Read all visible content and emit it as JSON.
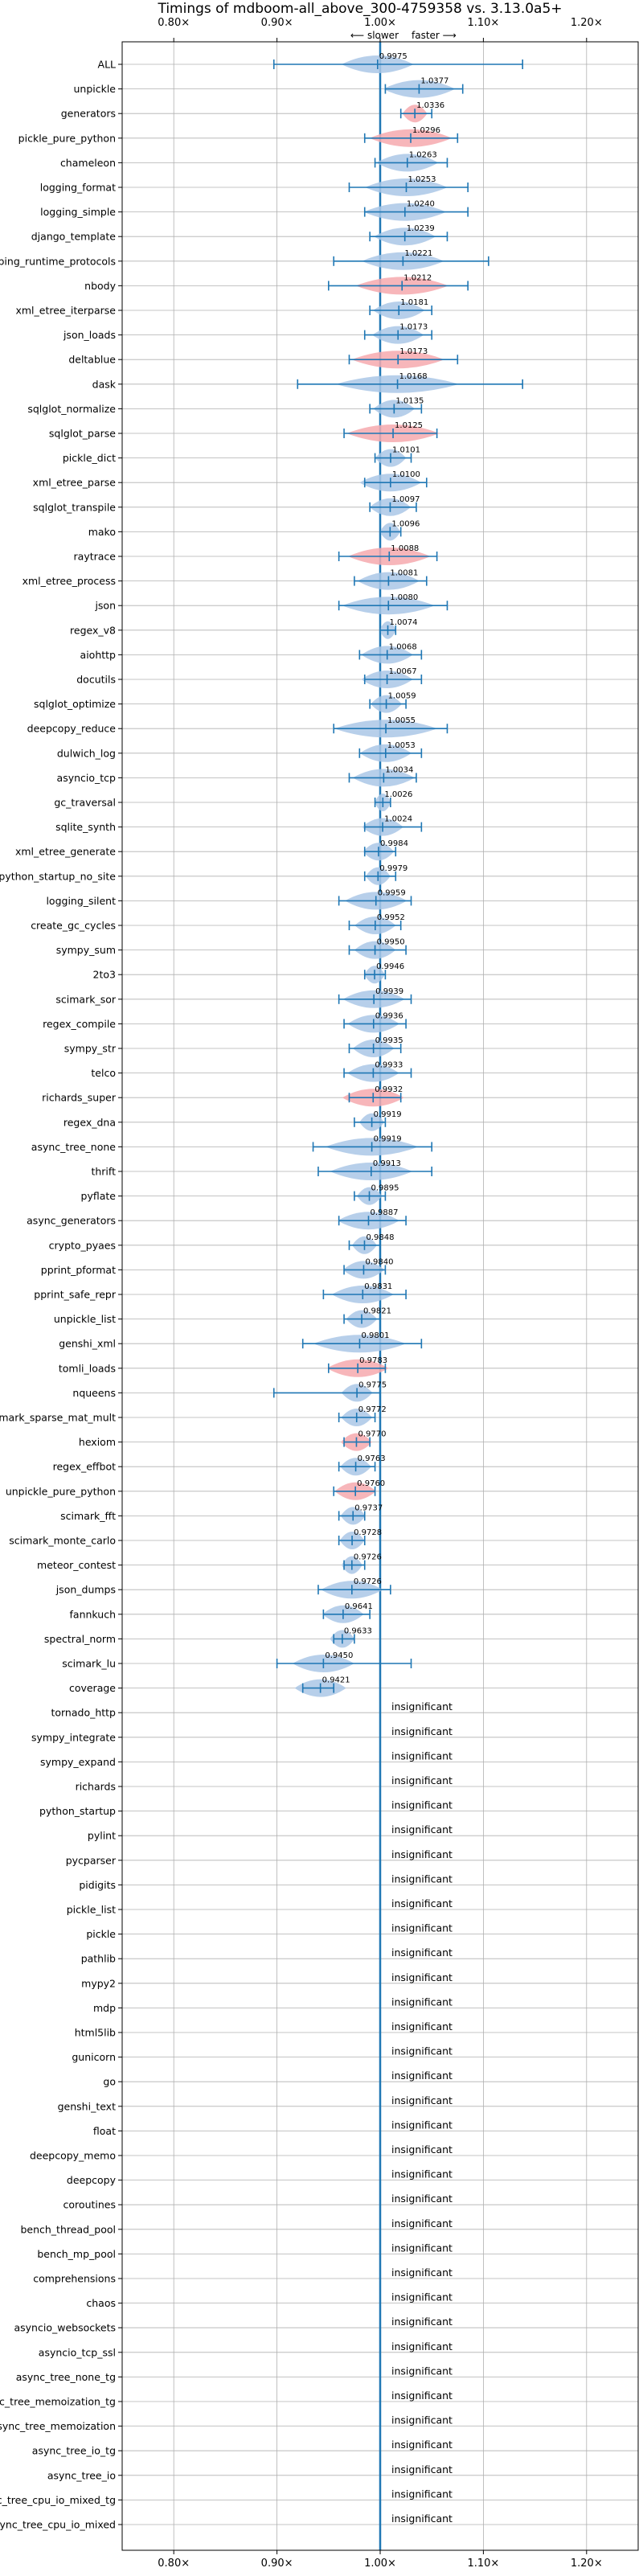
{
  "chart_data": {
    "type": "violin",
    "title": "Timings of mdboom-all_above_300-4759358 vs. 3.13.0a5+",
    "direction_slower": "⟵ slower",
    "direction_faster": "faster ⟶",
    "xlim": [
      0.75,
      1.25
    ],
    "xticks": [
      0.8,
      0.9,
      1.0,
      1.1,
      1.2
    ],
    "xtick_labels": [
      "0.80×",
      "0.90×",
      "1.00×",
      "1.10×",
      "1.20×"
    ],
    "grid": true,
    "colors": {
      "faster": "#aac7e6",
      "slower": "#f6a9ae",
      "line": "#1f77b4",
      "grid": "#b0b0b0"
    },
    "insignificant_label": "insignificant",
    "benchmarks": [
      {
        "name": "ALL",
        "value": 0.9975,
        "label": "0.9975",
        "lo": 0.897,
        "hi": 1.138,
        "width": 0.035,
        "sig": true
      },
      {
        "name": "unpickle",
        "value": 1.0377,
        "label": "1.0377",
        "lo": 1.005,
        "hi": 1.08,
        "width": 0.035,
        "sig": true
      },
      {
        "name": "generators",
        "value": 1.0336,
        "label": "1.0336",
        "lo": 1.02,
        "hi": 1.05,
        "width": 0.012,
        "sig": true
      },
      {
        "name": "pickle_pure_python",
        "value": 1.0296,
        "label": "1.0296",
        "lo": 0.985,
        "hi": 1.075,
        "width": 0.04,
        "sig": true
      },
      {
        "name": "chameleon",
        "value": 1.0263,
        "label": "1.0263",
        "lo": 0.995,
        "hi": 1.065,
        "width": 0.03,
        "sig": true
      },
      {
        "name": "logging_format",
        "value": 1.0253,
        "label": "1.0253",
        "lo": 0.97,
        "hi": 1.085,
        "width": 0.04,
        "sig": true
      },
      {
        "name": "logging_simple",
        "value": 1.024,
        "label": "1.0240",
        "lo": 0.985,
        "hi": 1.085,
        "width": 0.04,
        "sig": true
      },
      {
        "name": "django_template",
        "value": 1.0239,
        "label": "1.0239",
        "lo": 0.99,
        "hi": 1.065,
        "width": 0.03,
        "sig": true
      },
      {
        "name": "typing_runtime_protocols",
        "value": 1.0221,
        "label": "1.0221",
        "lo": 0.955,
        "hi": 1.105,
        "width": 0.04,
        "sig": true
      },
      {
        "name": "nbody",
        "value": 1.0212,
        "label": "1.0212",
        "lo": 0.95,
        "hi": 1.085,
        "width": 0.045,
        "sig": true
      },
      {
        "name": "xml_etree_iterparse",
        "value": 1.0181,
        "label": "1.0181",
        "lo": 0.99,
        "hi": 1.05,
        "width": 0.025,
        "sig": true
      },
      {
        "name": "json_loads",
        "value": 1.0173,
        "label": "1.0173",
        "lo": 0.985,
        "hi": 1.05,
        "width": 0.025,
        "sig": true
      },
      {
        "name": "deltablue",
        "value": 1.0173,
        "label": "1.0173",
        "lo": 0.97,
        "hi": 1.075,
        "width": 0.045,
        "sig": true
      },
      {
        "name": "dask",
        "value": 1.0168,
        "label": "1.0168",
        "lo": 0.92,
        "hi": 1.138,
        "width": 0.06,
        "sig": true
      },
      {
        "name": "sqlglot_normalize",
        "value": 1.0135,
        "label": "1.0135",
        "lo": 0.99,
        "hi": 1.04,
        "width": 0.02,
        "sig": true
      },
      {
        "name": "sqlglot_parse",
        "value": 1.0125,
        "label": "1.0125",
        "lo": 0.965,
        "hi": 1.055,
        "width": 0.045,
        "sig": true
      },
      {
        "name": "pickle_dict",
        "value": 1.0101,
        "label": "1.0101",
        "lo": 0.995,
        "hi": 1.03,
        "width": 0.015,
        "sig": true
      },
      {
        "name": "xml_etree_parse",
        "value": 1.01,
        "label": "1.0100",
        "lo": 0.985,
        "hi": 1.045,
        "width": 0.03,
        "sig": true
      },
      {
        "name": "sqlglot_transpile",
        "value": 1.0097,
        "label": "1.0097",
        "lo": 0.99,
        "hi": 1.035,
        "width": 0.02,
        "sig": true
      },
      {
        "name": "mako",
        "value": 1.0096,
        "label": "1.0096",
        "lo": 1.0,
        "hi": 1.02,
        "width": 0.01,
        "sig": true
      },
      {
        "name": "raytrace",
        "value": 1.0088,
        "label": "1.0088",
        "lo": 0.96,
        "hi": 1.055,
        "width": 0.04,
        "sig": true
      },
      {
        "name": "xml_etree_process",
        "value": 1.0081,
        "label": "1.0081",
        "lo": 0.975,
        "hi": 1.045,
        "width": 0.03,
        "sig": true
      },
      {
        "name": "json",
        "value": 1.008,
        "label": "1.0080",
        "lo": 0.96,
        "hi": 1.065,
        "width": 0.045,
        "sig": true
      },
      {
        "name": "regex_v8",
        "value": 1.0074,
        "label": "1.0074",
        "lo": 1.0,
        "hi": 1.015,
        "width": 0.008,
        "sig": true
      },
      {
        "name": "aiohttp",
        "value": 1.0068,
        "label": "1.0068",
        "lo": 0.98,
        "hi": 1.04,
        "width": 0.025,
        "sig": true
      },
      {
        "name": "docutils",
        "value": 1.0067,
        "label": "1.0067",
        "lo": 0.985,
        "hi": 1.04,
        "width": 0.025,
        "sig": true
      },
      {
        "name": "sqlglot_optimize",
        "value": 1.0059,
        "label": "1.0059",
        "lo": 0.99,
        "hi": 1.025,
        "width": 0.015,
        "sig": true
      },
      {
        "name": "deepcopy_reduce",
        "value": 1.0055,
        "label": "1.0055",
        "lo": 0.955,
        "hi": 1.065,
        "width": 0.05,
        "sig": true
      },
      {
        "name": "dulwich_log",
        "value": 1.0053,
        "label": "1.0053",
        "lo": 0.98,
        "hi": 1.04,
        "width": 0.025,
        "sig": true
      },
      {
        "name": "asyncio_tcp",
        "value": 1.0034,
        "label": "1.0034",
        "lo": 0.97,
        "hi": 1.035,
        "width": 0.03,
        "sig": true
      },
      {
        "name": "gc_traversal",
        "value": 1.0026,
        "label": "1.0026",
        "lo": 0.995,
        "hi": 1.01,
        "width": 0.008,
        "sig": true
      },
      {
        "name": "sqlite_synth",
        "value": 1.0024,
        "label": "1.0024",
        "lo": 0.985,
        "hi": 1.04,
        "width": 0.02,
        "sig": true
      },
      {
        "name": "xml_etree_generate",
        "value": 0.9984,
        "label": "0.9984",
        "lo": 0.985,
        "hi": 1.015,
        "width": 0.015,
        "sig": true
      },
      {
        "name": "python_startup_no_site",
        "value": 0.9979,
        "label": "0.9979",
        "lo": 0.985,
        "hi": 1.015,
        "width": 0.012,
        "sig": true
      },
      {
        "name": "logging_silent",
        "value": 0.9959,
        "label": "0.9959",
        "lo": 0.96,
        "hi": 1.03,
        "width": 0.03,
        "sig": true
      },
      {
        "name": "create_gc_cycles",
        "value": 0.9952,
        "label": "0.9952",
        "lo": 0.97,
        "hi": 1.02,
        "width": 0.02,
        "sig": true
      },
      {
        "name": "sympy_sum",
        "value": 0.995,
        "label": "0.9950",
        "lo": 0.97,
        "hi": 1.025,
        "width": 0.02,
        "sig": true
      },
      {
        "name": "2to3",
        "value": 0.9946,
        "label": "0.9946",
        "lo": 0.985,
        "hi": 1.005,
        "width": 0.01,
        "sig": true
      },
      {
        "name": "scimark_sor",
        "value": 0.9939,
        "label": "0.9939",
        "lo": 0.96,
        "hi": 1.03,
        "width": 0.03,
        "sig": true
      },
      {
        "name": "regex_compile",
        "value": 0.9936,
        "label": "0.9936",
        "lo": 0.965,
        "hi": 1.025,
        "width": 0.025,
        "sig": true
      },
      {
        "name": "sympy_str",
        "value": 0.9935,
        "label": "0.9935",
        "lo": 0.97,
        "hi": 1.02,
        "width": 0.02,
        "sig": true
      },
      {
        "name": "telco",
        "value": 0.9933,
        "label": "0.9933",
        "lo": 0.965,
        "hi": 1.03,
        "width": 0.025,
        "sig": true
      },
      {
        "name": "richards_super",
        "value": 0.9932,
        "label": "0.9932",
        "lo": 0.97,
        "hi": 1.02,
        "width": 0.03,
        "sig": true
      },
      {
        "name": "regex_dna",
        "value": 0.9919,
        "label": "0.9919",
        "lo": 0.975,
        "hi": 1.005,
        "width": 0.012,
        "sig": true
      },
      {
        "name": "async_tree_none",
        "value": 0.9919,
        "label": "0.9919",
        "lo": 0.935,
        "hi": 1.05,
        "width": 0.045,
        "sig": true
      },
      {
        "name": "thrift",
        "value": 0.9913,
        "label": "0.9913",
        "lo": 0.94,
        "hi": 1.05,
        "width": 0.04,
        "sig": true
      },
      {
        "name": "pyflate",
        "value": 0.9895,
        "label": "0.9895",
        "lo": 0.975,
        "hi": 1.005,
        "width": 0.012,
        "sig": true
      },
      {
        "name": "async_generators",
        "value": 0.9887,
        "label": "0.9887",
        "lo": 0.96,
        "hi": 1.025,
        "width": 0.03,
        "sig": true
      },
      {
        "name": "crypto_pyaes",
        "value": 0.9848,
        "label": "0.9848",
        "lo": 0.97,
        "hi": 1.0,
        "width": 0.012,
        "sig": true
      },
      {
        "name": "pprint_pformat",
        "value": 0.984,
        "label": "0.9840",
        "lo": 0.965,
        "hi": 1.005,
        "width": 0.02,
        "sig": true
      },
      {
        "name": "pprint_safe_repr",
        "value": 0.9831,
        "label": "0.9831",
        "lo": 0.945,
        "hi": 1.025,
        "width": 0.03,
        "sig": true
      },
      {
        "name": "unpickle_list",
        "value": 0.9821,
        "label": "0.9821",
        "lo": 0.965,
        "hi": 1.0,
        "width": 0.015,
        "sig": true
      },
      {
        "name": "genshi_xml",
        "value": 0.9801,
        "label": "0.9801",
        "lo": 0.925,
        "hi": 1.04,
        "width": 0.045,
        "sig": true
      },
      {
        "name": "tomli_loads",
        "value": 0.9783,
        "label": "0.9783",
        "lo": 0.95,
        "hi": 1.005,
        "width": 0.03,
        "sig": true
      },
      {
        "name": "nqueens",
        "value": 0.9775,
        "label": "0.9775",
        "lo": 0.897,
        "hi": 1.0,
        "width": 0.015,
        "sig": true
      },
      {
        "name": "scimark_sparse_mat_mult",
        "value": 0.9772,
        "label": "0.9772",
        "lo": 0.96,
        "hi": 0.995,
        "width": 0.015,
        "sig": true
      },
      {
        "name": "hexiom",
        "value": 0.977,
        "label": "0.9770",
        "lo": 0.965,
        "hi": 0.99,
        "width": 0.015,
        "sig": true
      },
      {
        "name": "regex_effbot",
        "value": 0.9763,
        "label": "0.9763",
        "lo": 0.96,
        "hi": 0.995,
        "width": 0.015,
        "sig": true
      },
      {
        "name": "unpickle_pure_python",
        "value": 0.976,
        "label": "0.9760",
        "lo": 0.955,
        "hi": 0.995,
        "width": 0.02,
        "sig": true
      },
      {
        "name": "scimark_fft",
        "value": 0.9737,
        "label": "0.9737",
        "lo": 0.96,
        "hi": 0.985,
        "width": 0.012,
        "sig": true
      },
      {
        "name": "scimark_monte_carlo",
        "value": 0.9728,
        "label": "0.9728",
        "lo": 0.96,
        "hi": 0.985,
        "width": 0.012,
        "sig": true
      },
      {
        "name": "meteor_contest",
        "value": 0.9726,
        "label": "0.9726",
        "lo": 0.965,
        "hi": 0.985,
        "width": 0.01,
        "sig": true
      },
      {
        "name": "json_dumps",
        "value": 0.9726,
        "label": "0.9726",
        "lo": 0.94,
        "hi": 1.01,
        "width": 0.03,
        "sig": true
      },
      {
        "name": "fannkuch",
        "value": 0.9641,
        "label": "0.9641",
        "lo": 0.945,
        "hi": 0.99,
        "width": 0.02,
        "sig": true
      },
      {
        "name": "spectral_norm",
        "value": 0.9633,
        "label": "0.9633",
        "lo": 0.955,
        "hi": 0.975,
        "width": 0.012,
        "sig": true
      },
      {
        "name": "scimark_lu",
        "value": 0.945,
        "label": "0.9450",
        "lo": 0.9,
        "hi": 1.03,
        "width": 0.03,
        "sig": true
      },
      {
        "name": "coverage",
        "value": 0.9421,
        "label": "0.9421",
        "lo": 0.925,
        "hi": 0.955,
        "width": 0.025,
        "sig": true
      },
      {
        "name": "tornado_http",
        "sig": false
      },
      {
        "name": "sympy_integrate",
        "sig": false
      },
      {
        "name": "sympy_expand",
        "sig": false
      },
      {
        "name": "richards",
        "sig": false
      },
      {
        "name": "python_startup",
        "sig": false
      },
      {
        "name": "pylint",
        "sig": false
      },
      {
        "name": "pycparser",
        "sig": false
      },
      {
        "name": "pidigits",
        "sig": false
      },
      {
        "name": "pickle_list",
        "sig": false
      },
      {
        "name": "pickle",
        "sig": false
      },
      {
        "name": "pathlib",
        "sig": false
      },
      {
        "name": "mypy2",
        "sig": false
      },
      {
        "name": "mdp",
        "sig": false
      },
      {
        "name": "html5lib",
        "sig": false
      },
      {
        "name": "gunicorn",
        "sig": false
      },
      {
        "name": "go",
        "sig": false
      },
      {
        "name": "genshi_text",
        "sig": false
      },
      {
        "name": "float",
        "sig": false
      },
      {
        "name": "deepcopy_memo",
        "sig": false
      },
      {
        "name": "deepcopy",
        "sig": false
      },
      {
        "name": "coroutines",
        "sig": false
      },
      {
        "name": "bench_thread_pool",
        "sig": false
      },
      {
        "name": "bench_mp_pool",
        "sig": false
      },
      {
        "name": "comprehensions",
        "sig": false
      },
      {
        "name": "chaos",
        "sig": false
      },
      {
        "name": "asyncio_websockets",
        "sig": false
      },
      {
        "name": "asyncio_tcp_ssl",
        "sig": false
      },
      {
        "name": "async_tree_none_tg",
        "sig": false
      },
      {
        "name": "async_tree_memoization_tg",
        "sig": false
      },
      {
        "name": "async_tree_memoization",
        "sig": false
      },
      {
        "name": "async_tree_io_tg",
        "sig": false
      },
      {
        "name": "async_tree_io",
        "sig": false
      },
      {
        "name": "async_tree_cpu_io_mixed_tg",
        "sig": false
      },
      {
        "name": "async_tree_cpu_io_mixed",
        "sig": false
      }
    ]
  }
}
